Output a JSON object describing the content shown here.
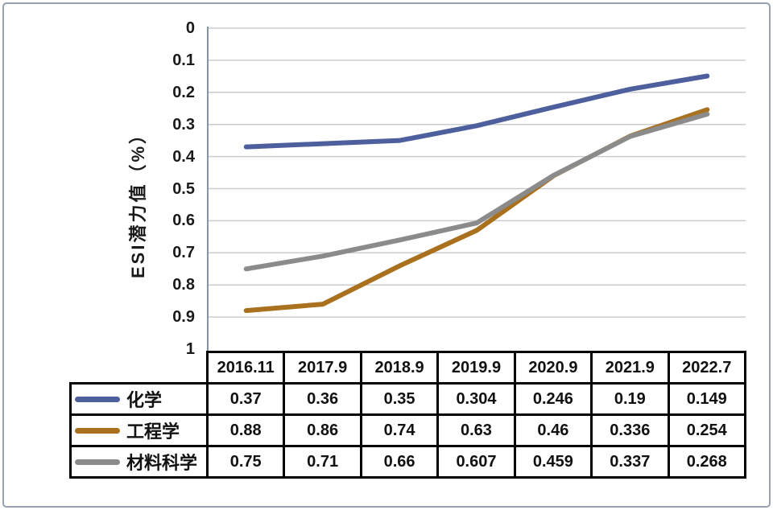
{
  "frame": {
    "border_color": "#96a2b2"
  },
  "colors": {
    "grid": "#c9cdd2",
    "axis": "#8494a4",
    "table_border": "#000000",
    "text": "#1a1a1a",
    "background": "#ffffff"
  },
  "chart_data": {
    "type": "line",
    "title": "",
    "xlabel": "",
    "ylabel": "ESI潜力值（%）",
    "y_inverted": true,
    "ylim": [
      0,
      1
    ],
    "grid": true,
    "legend_position": "table-left-column",
    "y_ticks": [
      "0",
      "0.1",
      "0.2",
      "0.3",
      "0.4",
      "0.5",
      "0.6",
      "0.7",
      "0.8",
      "0.9",
      "1"
    ],
    "categories": [
      "2016.11",
      "2017.9",
      "2018.9",
      "2019.9",
      "2020.9",
      "2021.9",
      "2022.7"
    ],
    "series": [
      {
        "id": "chemistry",
        "name": "化学",
        "color": "#4e5f9d",
        "values": [
          0.37,
          0.36,
          0.35,
          0.304,
          0.246,
          0.19,
          0.149
        ],
        "labels": [
          "0.37",
          "0.36",
          "0.35",
          "0.304",
          "0.246",
          "0.19",
          "0.149"
        ]
      },
      {
        "id": "engineering",
        "name": "工程学",
        "color": "#a9701e",
        "values": [
          0.88,
          0.86,
          0.74,
          0.63,
          0.46,
          0.336,
          0.254
        ],
        "labels": [
          "0.88",
          "0.86",
          "0.74",
          "0.63",
          "0.46",
          "0.336",
          "0.254"
        ]
      },
      {
        "id": "materials-science",
        "name": "材料科学",
        "color": "#8b8b8b",
        "values": [
          0.75,
          0.71,
          0.66,
          0.607,
          0.459,
          0.337,
          0.268
        ],
        "labels": [
          "0.75",
          "0.71",
          "0.66",
          "0.607",
          "0.459",
          "0.337",
          "0.268"
        ]
      }
    ]
  }
}
